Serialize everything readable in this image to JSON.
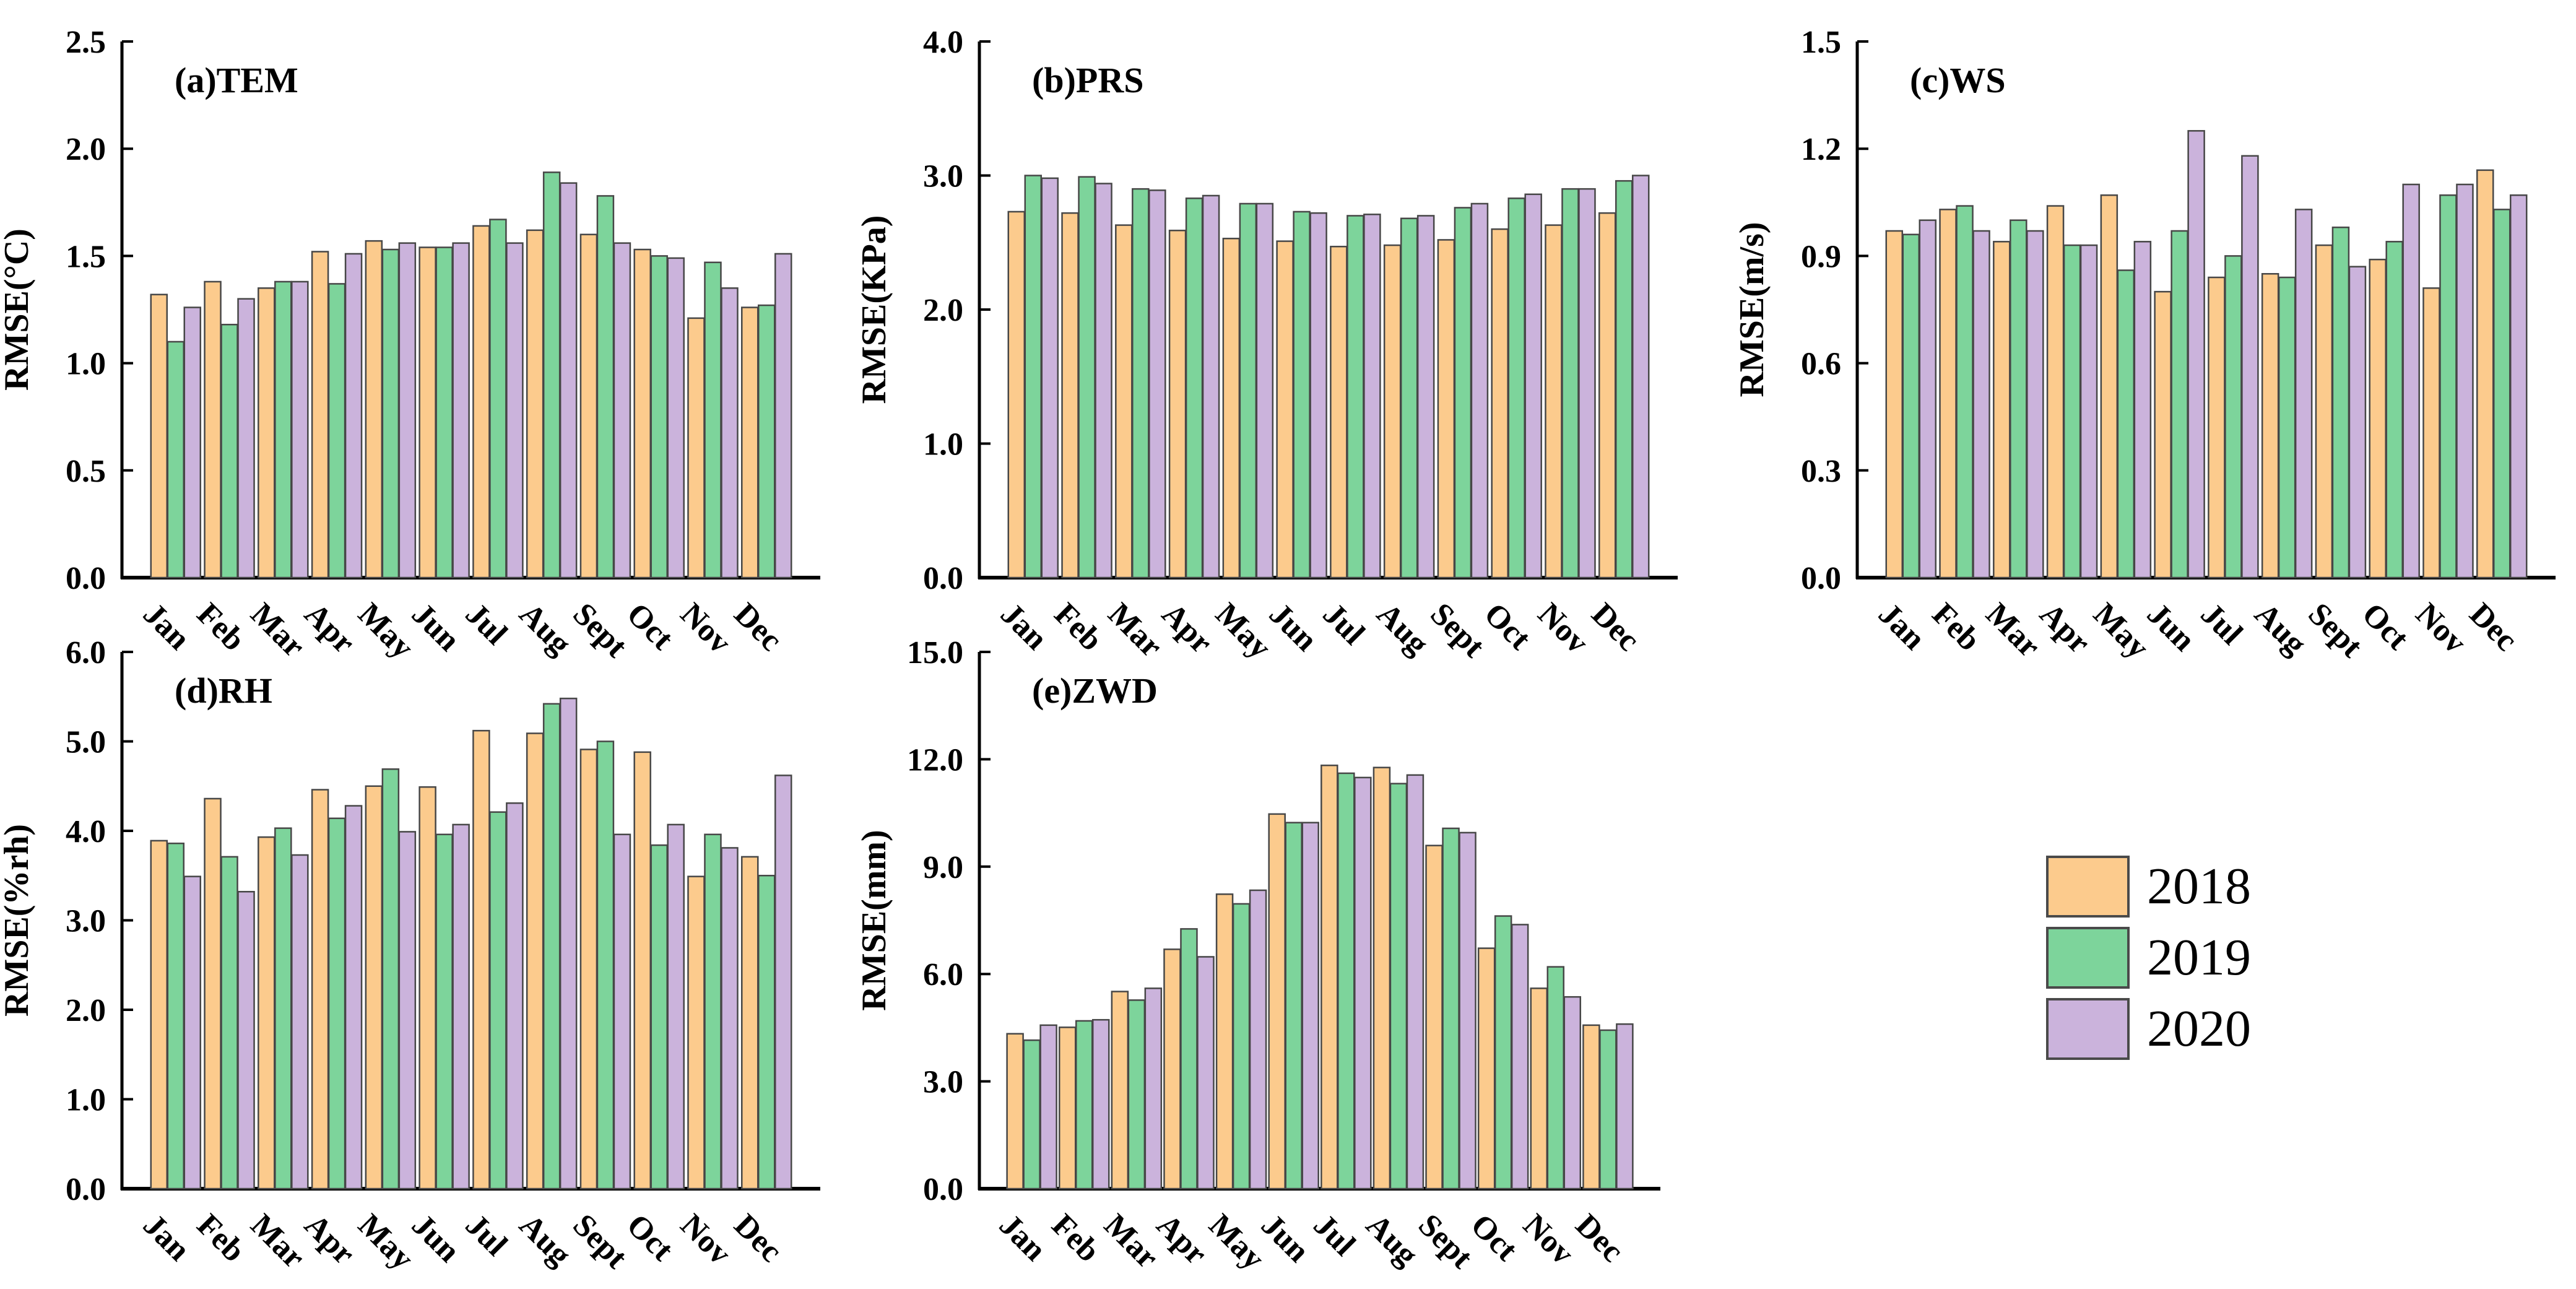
{
  "figure": {
    "background": "#ffffff",
    "text_color": "#000000",
    "bar_edge_color": "#474747",
    "axis_color": "#000000"
  },
  "months": [
    "Jan",
    "Feb",
    "Mar",
    "Apr",
    "May",
    "Jun",
    "Jul",
    "Aug",
    "Sept",
    "Oct",
    "Nov",
    "Dec"
  ],
  "legend": {
    "border_color": "#4a4a4a",
    "items": [
      {
        "label": "2018",
        "color": "#FCCB8D"
      },
      {
        "label": "2019",
        "color": "#7DD49B"
      },
      {
        "label": "2020",
        "color": "#CBB3DC"
      }
    ]
  },
  "chart_data": [
    {
      "id": "tem",
      "type": "bar",
      "title": "(a)TEM",
      "ylabel": "RMSE(°C)",
      "xlabel": "",
      "ylim": [
        0,
        2.5
      ],
      "ytick_labels": [
        "0.0",
        "0.5",
        "1.0",
        "1.5",
        "2.0",
        "2.5"
      ],
      "grid": false,
      "categories": [
        "Jan",
        "Feb",
        "Mar",
        "Apr",
        "May",
        "Jun",
        "Jul",
        "Aug",
        "Sept",
        "Oct",
        "Nov",
        "Dec"
      ],
      "series": [
        {
          "name": "2018",
          "values": [
            1.32,
            1.38,
            1.35,
            1.52,
            1.57,
            1.54,
            1.64,
            1.62,
            1.6,
            1.53,
            1.21,
            1.26
          ]
        },
        {
          "name": "2019",
          "values": [
            1.1,
            1.18,
            1.38,
            1.37,
            1.53,
            1.54,
            1.67,
            1.89,
            1.78,
            1.5,
            1.47,
            1.27
          ]
        },
        {
          "name": "2020",
          "values": [
            1.26,
            1.3,
            1.38,
            1.51,
            1.56,
            1.56,
            1.56,
            1.84,
            1.56,
            1.49,
            1.35,
            1.51
          ]
        }
      ]
    },
    {
      "id": "prs",
      "type": "bar",
      "title": "(b)PRS",
      "ylabel": "RMSE(KPa)",
      "xlabel": "",
      "ylim": [
        0,
        4.0
      ],
      "ytick_labels": [
        "0.0",
        "1.0",
        "2.0",
        "3.0",
        "4.0"
      ],
      "grid": false,
      "categories": [
        "Jan",
        "Feb",
        "Mar",
        "Apr",
        "May",
        "Jun",
        "Jul",
        "Aug",
        "Sept",
        "Oct",
        "Nov",
        "Dec"
      ],
      "series": [
        {
          "name": "2018",
          "values": [
            2.73,
            2.72,
            2.63,
            2.59,
            2.53,
            2.51,
            2.47,
            2.48,
            2.52,
            2.6,
            2.63,
            2.72
          ]
        },
        {
          "name": "2019",
          "values": [
            3.0,
            2.99,
            2.9,
            2.83,
            2.79,
            2.73,
            2.7,
            2.68,
            2.76,
            2.83,
            2.9,
            2.96
          ]
        },
        {
          "name": "2020",
          "values": [
            2.98,
            2.94,
            2.89,
            2.85,
            2.79,
            2.72,
            2.71,
            2.7,
            2.79,
            2.86,
            2.9,
            3.0
          ]
        }
      ]
    },
    {
      "id": "ws",
      "type": "bar",
      "title": "(c)WS",
      "ylabel": "RMSE(m/s)",
      "xlabel": "",
      "ylim": [
        0,
        1.5
      ],
      "ytick_labels": [
        "0.0",
        "0.3",
        "0.6",
        "0.9",
        "1.2",
        "1.5"
      ],
      "grid": false,
      "categories": [
        "Jan",
        "Feb",
        "Mar",
        "Apr",
        "May",
        "Jun",
        "Jul",
        "Aug",
        "Sept",
        "Oct",
        "Nov",
        "Dec"
      ],
      "series": [
        {
          "name": "2018",
          "values": [
            0.97,
            1.03,
            0.94,
            1.04,
            1.07,
            0.8,
            0.84,
            0.85,
            0.93,
            0.89,
            0.81,
            1.14
          ]
        },
        {
          "name": "2019",
          "values": [
            0.96,
            1.04,
            1.0,
            0.93,
            0.86,
            0.97,
            0.9,
            0.84,
            0.98,
            0.94,
            1.07,
            1.03
          ]
        },
        {
          "name": "2020",
          "values": [
            1.0,
            0.97,
            0.97,
            0.93,
            0.94,
            1.25,
            1.18,
            1.03,
            0.87,
            1.1,
            1.1,
            1.07
          ]
        }
      ]
    },
    {
      "id": "rh",
      "type": "bar",
      "title": "(d)RH",
      "ylabel": "RMSE(%rh)",
      "xlabel": "",
      "ylim": [
        0,
        6.0
      ],
      "ytick_labels": [
        "0.0",
        "1.0",
        "2.0",
        "3.0",
        "4.0",
        "5.0",
        "6.0"
      ],
      "grid": false,
      "categories": [
        "Jan",
        "Feb",
        "Mar",
        "Apr",
        "May",
        "Jun",
        "Jul",
        "Aug",
        "Sept",
        "Oct",
        "Nov",
        "Dec"
      ],
      "series": [
        {
          "name": "2018",
          "values": [
            3.89,
            4.36,
            3.93,
            4.46,
            4.5,
            4.49,
            5.12,
            5.09,
            4.91,
            4.88,
            3.49,
            3.71
          ]
        },
        {
          "name": "2019",
          "values": [
            3.86,
            3.71,
            4.03,
            4.14,
            4.69,
            3.96,
            4.21,
            5.42,
            5.0,
            3.84,
            3.96,
            3.5
          ]
        },
        {
          "name": "2020",
          "values": [
            3.49,
            3.32,
            3.73,
            4.28,
            3.99,
            4.07,
            4.31,
            5.48,
            3.96,
            4.07,
            3.81,
            4.62
          ]
        }
      ]
    },
    {
      "id": "zwd",
      "type": "bar",
      "title": "(e)ZWD",
      "ylabel": "RMSE(mm)",
      "xlabel": "",
      "ylim": [
        0,
        15.0
      ],
      "ytick_labels": [
        "0.0",
        "3.0",
        "6.0",
        "9.0",
        "12.0",
        "15.0"
      ],
      "grid": false,
      "categories": [
        "Jan",
        "Feb",
        "Mar",
        "Apr",
        "May",
        "Jun",
        "Jul",
        "Aug",
        "Sept",
        "Oct",
        "Nov",
        "Dec"
      ],
      "series": [
        {
          "name": "2018",
          "values": [
            4.33,
            4.51,
            5.51,
            6.69,
            8.23,
            10.47,
            11.83,
            11.77,
            9.59,
            6.72,
            5.6,
            4.57
          ]
        },
        {
          "name": "2019",
          "values": [
            4.15,
            4.69,
            5.27,
            7.26,
            7.96,
            10.23,
            11.61,
            11.32,
            10.07,
            7.62,
            6.2,
            4.43
          ]
        },
        {
          "name": "2020",
          "values": [
            4.57,
            4.72,
            5.6,
            6.48,
            8.34,
            10.23,
            11.49,
            11.56,
            9.95,
            7.38,
            5.36,
            4.6
          ]
        }
      ]
    }
  ]
}
